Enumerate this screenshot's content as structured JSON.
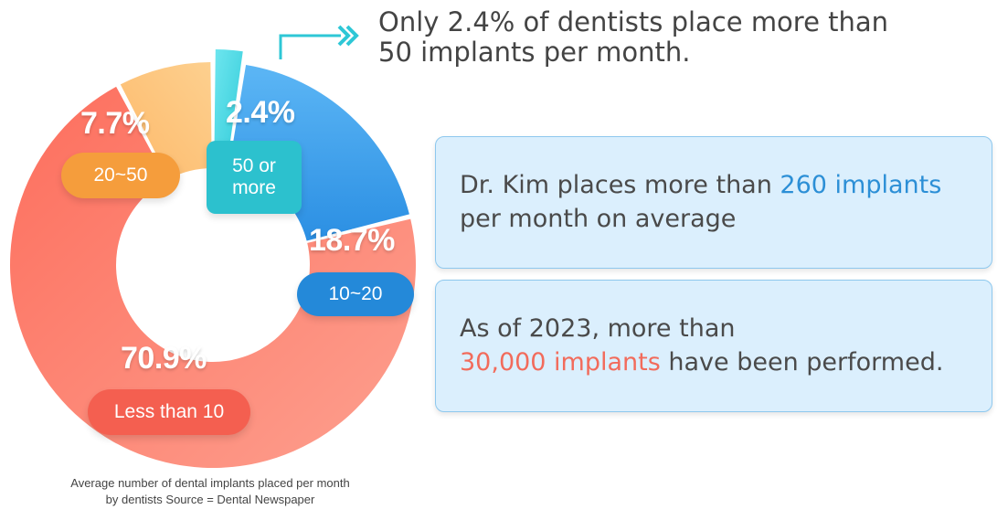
{
  "chart_data": {
    "type": "pie",
    "style": "donut",
    "slices": [
      {
        "label": "50 or more",
        "value": 2.4,
        "display": "2.4%",
        "color": "#3fd4e0"
      },
      {
        "label": "10~20",
        "value": 18.7,
        "display": "18.7%",
        "color": "#3aa0ee"
      },
      {
        "label": "Less than 10",
        "value": 70.9,
        "display": "70.9%",
        "color": "#fb7c68"
      },
      {
        "label": "20~50",
        "value": 7.7,
        "display": "7.7%",
        "color": "#fcc97e"
      }
    ],
    "pill_colors": {
      "50 or more": "#2cc1ce",
      "10~20": "#2489d9",
      "Less than 10": "#f45f50",
      "20~50": "#f59d3c"
    }
  },
  "headline": {
    "line1": "Only 2.4% of dentists place more than",
    "line2": "50 implants per month."
  },
  "info_box_1": {
    "text_a": "Dr. Kim places more than ",
    "highlight": "260 implants",
    "text_b": "per month on average"
  },
  "info_box_2": {
    "text_a": "As of 2023, more than",
    "highlight": "30,000 implants",
    "text_b": " have been performed."
  },
  "source": {
    "line1": "Average number of dental implants placed per month",
    "line2": "by dentists Source = Dental Newspaper"
  },
  "colors": {
    "accent_blue": "#2c8fd6",
    "accent_red": "#f26b5b",
    "arrow_cyan": "#2ec7d6"
  }
}
